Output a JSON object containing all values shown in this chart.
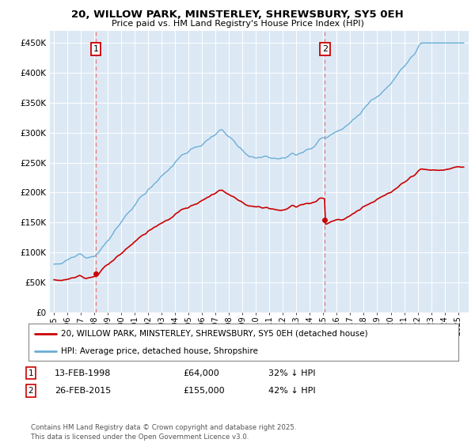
{
  "title": "20, WILLOW PARK, MINSTERLEY, SHREWSBURY, SY5 0EH",
  "subtitle": "Price paid vs. HM Land Registry's House Price Index (HPI)",
  "legend_line1": "20, WILLOW PARK, MINSTERLEY, SHREWSBURY, SY5 0EH (detached house)",
  "legend_line2": "HPI: Average price, detached house, Shropshire",
  "sale1_date": "13-FEB-1998",
  "sale1_price": "£64,000",
  "sale1_hpi": "32% ↓ HPI",
  "sale2_date": "26-FEB-2015",
  "sale2_price": "£155,000",
  "sale2_hpi": "42% ↓ HPI",
  "footer": "Contains HM Land Registry data © Crown copyright and database right 2025.\nThis data is licensed under the Open Government Licence v3.0.",
  "sale1_year": 1998.12,
  "sale1_value": 64000,
  "sale2_year": 2015.12,
  "sale2_value": 155000,
  "hpi_color": "#6baed6",
  "property_color": "#cc0000",
  "background_chart": "#dce9f5",
  "background_fig": "#ffffff",
  "ylim": [
    0,
    470000
  ],
  "xlim_start": 1994.7,
  "xlim_end": 2025.8
}
